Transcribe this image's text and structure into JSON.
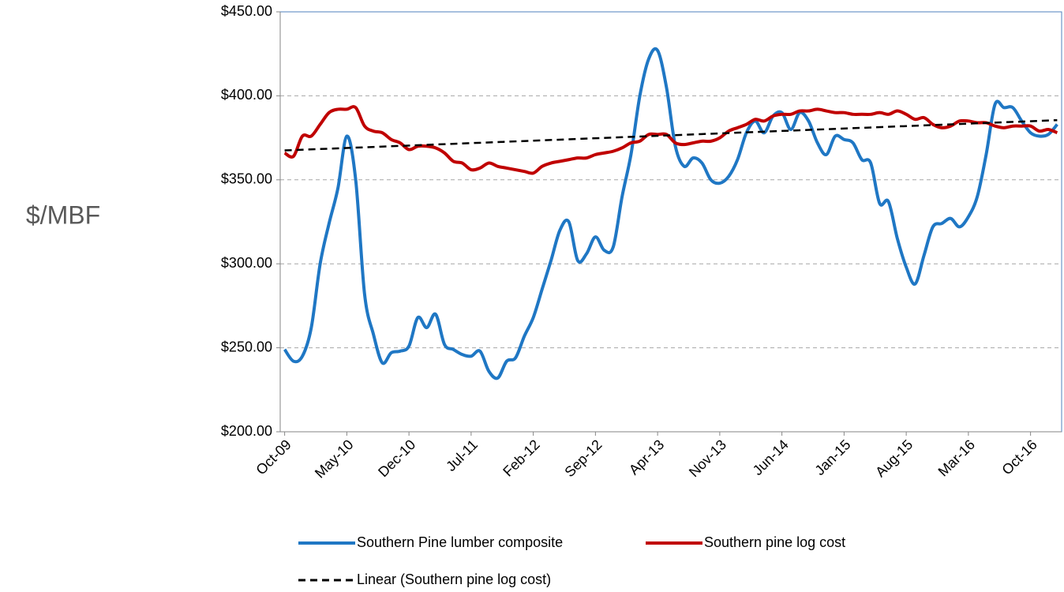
{
  "chart_data": {
    "type": "line",
    "ylabel": "$/MBF",
    "categories": [
      "Oct-09",
      null,
      null,
      null,
      null,
      null,
      null,
      "May-10",
      null,
      null,
      null,
      null,
      null,
      null,
      "Dec-10",
      null,
      null,
      null,
      null,
      null,
      null,
      "Jul-11",
      null,
      null,
      null,
      null,
      null,
      null,
      "Feb-12",
      null,
      null,
      null,
      null,
      null,
      null,
      "Sep-12",
      null,
      null,
      null,
      null,
      null,
      null,
      "Apr-13",
      null,
      null,
      null,
      null,
      null,
      null,
      "Nov-13",
      null,
      null,
      null,
      null,
      null,
      null,
      "Jun-14",
      null,
      null,
      null,
      null,
      null,
      null,
      "Jan-15",
      null,
      null,
      null,
      null,
      null,
      null,
      "Aug-15",
      null,
      null,
      null,
      null,
      null,
      null,
      "Mar-16",
      null,
      null,
      null,
      null,
      null,
      null,
      "Oct-16",
      null,
      null,
      null
    ],
    "series": [
      {
        "name": "Southern Pine lumber composite",
        "color": "#1f77c4",
        "values": [
          249,
          242,
          245,
          262,
          300,
          324,
          345,
          376,
          350,
          282,
          258,
          241,
          247,
          248,
          251,
          268,
          262,
          270,
          252,
          249,
          246,
          245,
          248,
          236,
          232,
          242,
          244,
          257,
          268,
          285,
          302,
          320,
          325,
          302,
          306,
          316,
          308,
          310,
          340,
          365,
          400,
          422,
          427,
          405,
          370,
          358,
          363,
          360,
          350,
          348,
          352,
          362,
          378,
          385,
          378,
          388,
          390,
          380,
          390,
          385,
          372,
          365,
          376,
          374,
          372,
          362,
          360,
          336,
          337,
          315,
          298,
          288,
          305,
          322,
          324,
          327,
          322,
          328,
          340,
          365,
          395,
          393,
          393,
          385,
          378,
          376,
          377,
          383
        ]
      },
      {
        "name": "Southern pine log cost",
        "color": "#c00000",
        "values": [
          366,
          364,
          376,
          376,
          383,
          390,
          392,
          392,
          393,
          382,
          379,
          378,
          374,
          372,
          368,
          370,
          370,
          369,
          366,
          361,
          360,
          356,
          357,
          360,
          358,
          357,
          356,
          355,
          354,
          358,
          360,
          361,
          362,
          363,
          363,
          365,
          366,
          367,
          369,
          372,
          373,
          377,
          377,
          377,
          372,
          371,
          372,
          373,
          373,
          375,
          379,
          381,
          383,
          386,
          385,
          388,
          389,
          389,
          391,
          391,
          392,
          391,
          390,
          390,
          389,
          389,
          389,
          390,
          389,
          391,
          389,
          386,
          387,
          383,
          381,
          382,
          385,
          385,
          384,
          384,
          382,
          381,
          382,
          382,
          382,
          379,
          380,
          378
        ]
      }
    ],
    "trendline": {
      "name": "Linear (Southern pine log cost)",
      "color": "#000000",
      "values": [
        367.5,
        385.5
      ]
    },
    "ylim": [
      200,
      450
    ],
    "yticks": [
      {
        "value": 200,
        "label": "$200.00"
      },
      {
        "value": 250,
        "label": "$250.00"
      },
      {
        "value": 300,
        "label": "$300.00"
      },
      {
        "value": 350,
        "label": "$350.00"
      },
      {
        "value": 400,
        "label": "$400.00"
      },
      {
        "value": 450,
        "label": "$450.00"
      }
    ],
    "grid": true
  }
}
